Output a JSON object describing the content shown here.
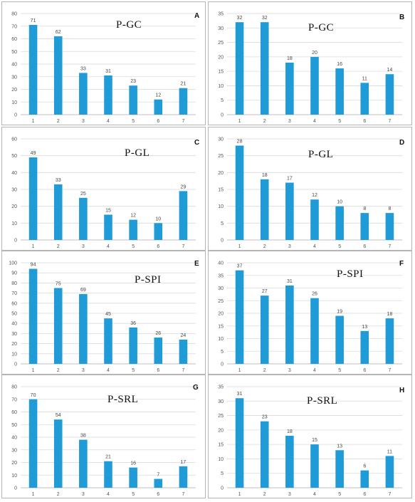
{
  "chart_data": [
    {
      "type": "bar",
      "panel": "A",
      "title": "P-GC",
      "categories": [
        "1",
        "2",
        "3",
        "4",
        "5",
        "6",
        "7"
      ],
      "values": [
        71,
        62,
        33,
        31,
        23,
        12,
        21
      ],
      "ylim": [
        0,
        80
      ],
      "yticks": [
        0,
        10,
        20,
        30,
        40,
        50,
        60,
        70,
        80
      ],
      "grid": true,
      "color": "#1f9bd7"
    },
    {
      "type": "bar",
      "panel": "B",
      "title": "P-GC",
      "categories": [
        "1",
        "2",
        "3",
        "4",
        "5",
        "6",
        "7"
      ],
      "values": [
        32,
        32,
        18,
        20,
        16,
        11,
        14
      ],
      "ylim": [
        0,
        35
      ],
      "yticks": [
        0,
        5,
        10,
        15,
        20,
        25,
        30,
        35
      ],
      "grid": true,
      "color": "#1f9bd7"
    },
    {
      "type": "bar",
      "panel": "C",
      "title": "P-GL",
      "categories": [
        "1",
        "2",
        "3",
        "4",
        "5",
        "6",
        "7"
      ],
      "values": [
        49,
        33,
        25,
        15,
        12,
        10,
        29
      ],
      "ylim": [
        0,
        60
      ],
      "yticks": [
        0,
        10,
        20,
        30,
        40,
        50,
        60
      ],
      "grid": true,
      "color": "#1f9bd7"
    },
    {
      "type": "bar",
      "panel": "D",
      "title": "P-GL",
      "categories": [
        "1",
        "2",
        "3",
        "4",
        "5",
        "6",
        "7"
      ],
      "values": [
        28,
        18,
        17,
        12,
        10,
        8,
        8
      ],
      "ylim": [
        0,
        30
      ],
      "yticks": [
        0,
        5,
        10,
        15,
        20,
        25,
        30
      ],
      "grid": true,
      "color": "#1f9bd7"
    },
    {
      "type": "bar",
      "panel": "E",
      "title": "P-SPI",
      "categories": [
        "1",
        "2",
        "3",
        "4",
        "5",
        "6",
        "7"
      ],
      "values": [
        94,
        75,
        69,
        45,
        36,
        26,
        24
      ],
      "ylim": [
        0,
        100
      ],
      "yticks": [
        0,
        10,
        20,
        30,
        40,
        50,
        60,
        70,
        80,
        90,
        100
      ],
      "grid": true,
      "color": "#1f9bd7"
    },
    {
      "type": "bar",
      "panel": "F",
      "title": "P-SPI",
      "categories": [
        "1",
        "2",
        "3",
        "4",
        "5",
        "6",
        "7"
      ],
      "values": [
        37,
        27,
        31,
        26,
        19,
        13,
        18
      ],
      "ylim": [
        0,
        40
      ],
      "yticks": [
        0,
        5,
        10,
        15,
        20,
        25,
        30,
        35,
        40
      ],
      "grid": true,
      "color": "#1f9bd7"
    },
    {
      "type": "bar",
      "panel": "G",
      "title": "P-SRL",
      "categories": [
        "1",
        "2",
        "3",
        "4",
        "5",
        "6",
        "7"
      ],
      "values": [
        70,
        54,
        38,
        21,
        16,
        7,
        17
      ],
      "ylim": [
        0,
        80
      ],
      "yticks": [
        0,
        10,
        20,
        30,
        40,
        50,
        60,
        70,
        80
      ],
      "grid": true,
      "color": "#1f9bd7"
    },
    {
      "type": "bar",
      "panel": "H",
      "title": "P-SRL",
      "categories": [
        "1",
        "2",
        "3",
        "4",
        "5",
        "6",
        "7"
      ],
      "values": [
        31,
        23,
        18,
        15,
        13,
        6,
        11
      ],
      "ylim": [
        0,
        35
      ],
      "yticks": [
        0,
        5,
        10,
        15,
        20,
        25,
        30,
        35
      ],
      "grid": true,
      "color": "#1f9bd7"
    }
  ]
}
